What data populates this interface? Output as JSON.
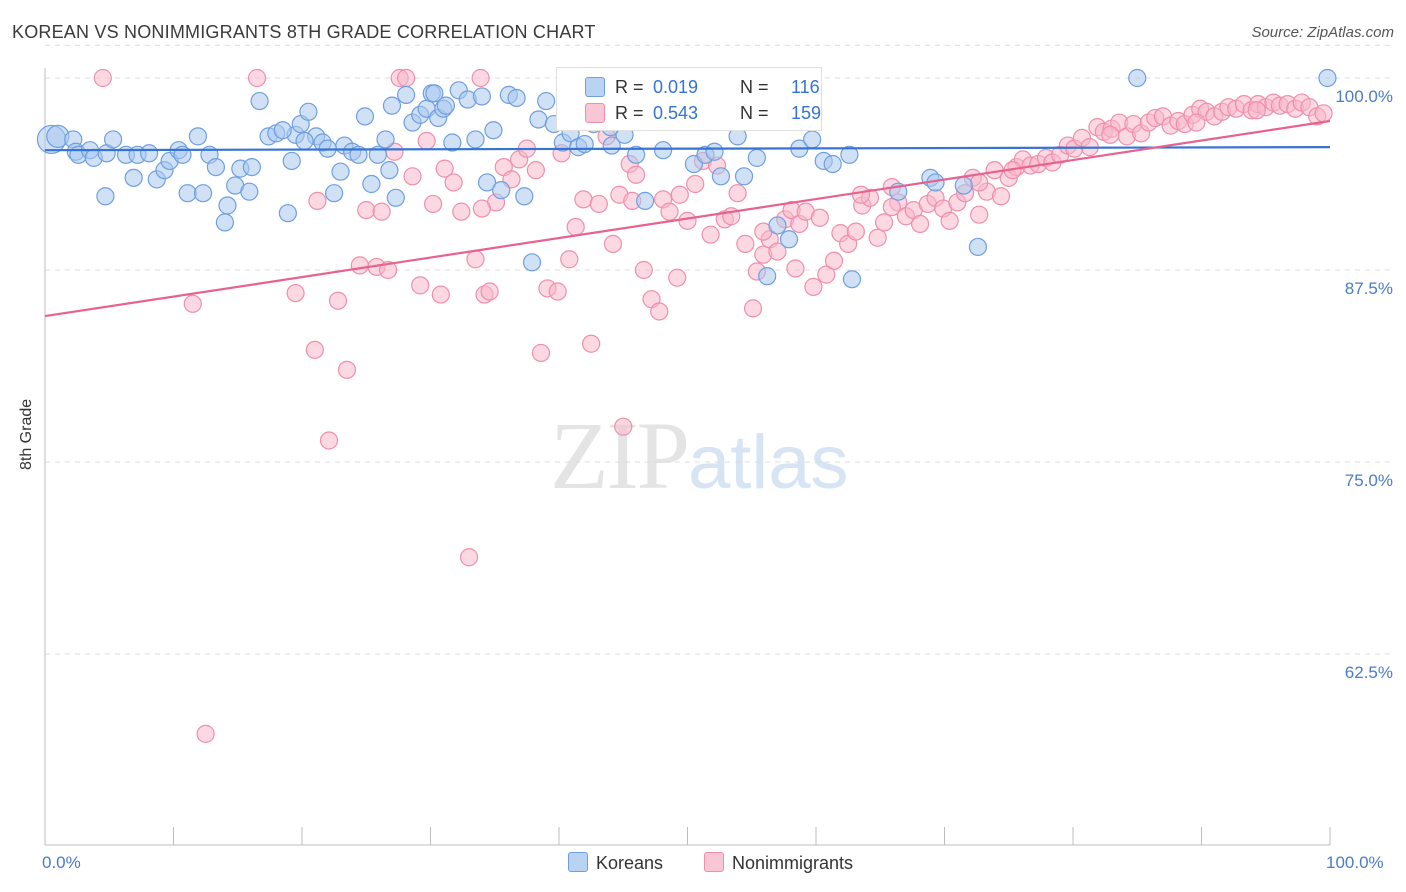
{
  "title": "KOREAN VS NONIMMIGRANTS 8TH GRADE CORRELATION CHART",
  "source": "Source: ZipAtlas.com",
  "watermark": {
    "zip": "ZIP",
    "atlas": "atlas"
  },
  "colors": {
    "korean_fill": "#a9c8ef",
    "korean_stroke": "#6f9fe0",
    "korean_line": "#3573d4",
    "nonimm_fill": "#f7b8ca",
    "nonimm_stroke": "#ef8fae",
    "nonimm_line": "#e8628f",
    "tick_label": "#4a7cc9",
    "grid": "#dcdcdc"
  },
  "legend_top": {
    "korean": {
      "r_label": "R =",
      "r_value": "0.019",
      "n_label": "N =",
      "n_value": "116"
    },
    "nonimm": {
      "r_label": "R =",
      "r_value": "0.543",
      "n_label": "N =",
      "n_value": "159"
    }
  },
  "legend_bottom": {
    "korean": "Koreans",
    "nonimm": "Nonimmigrants"
  },
  "chart_data": {
    "type": "scatter",
    "title": "KOREAN VS NONIMMIGRANTS 8TH GRADE CORRELATION CHART",
    "xlabel": "",
    "ylabel": "8th Grade",
    "xlim": [
      0,
      100
    ],
    "ylim": [
      50,
      102
    ],
    "x_tick_labels": [
      "0.0%",
      "100.0%"
    ],
    "y_ticks": [
      100,
      87.5,
      75,
      62.5
    ],
    "y_tick_labels": [
      "100.0%",
      "87.5%",
      "75.0%",
      "62.5%"
    ],
    "grid": "horizontal dashed",
    "legend_position": "top-center",
    "series": [
      {
        "name": "Koreans",
        "r": 0.019,
        "n": 116,
        "trend": {
          "x": [
            0,
            100
          ],
          "y": [
            95.3,
            95.5
          ]
        },
        "points": [
          [
            0.5,
            96.0
          ],
          [
            1.0,
            96.2
          ],
          [
            2.2,
            96.0
          ],
          [
            2.4,
            95.2
          ],
          [
            2.6,
            95.0
          ],
          [
            3.5,
            95.3
          ],
          [
            3.8,
            94.8
          ],
          [
            4.7,
            92.3
          ],
          [
            4.8,
            95.1
          ],
          [
            5.3,
            96.0
          ],
          [
            6.3,
            95.0
          ],
          [
            6.9,
            93.5
          ],
          [
            7.2,
            95.0
          ],
          [
            8.1,
            95.1
          ],
          [
            8.7,
            93.4
          ],
          [
            9.3,
            94.0
          ],
          [
            9.7,
            94.6
          ],
          [
            10.4,
            95.3
          ],
          [
            10.7,
            95.0
          ],
          [
            11.1,
            92.5
          ],
          [
            11.9,
            96.2
          ],
          [
            12.3,
            92.5
          ],
          [
            12.8,
            95.0
          ],
          [
            13.3,
            94.2
          ],
          [
            14.0,
            90.6
          ],
          [
            14.2,
            91.7
          ],
          [
            14.8,
            93.0
          ],
          [
            15.2,
            94.1
          ],
          [
            15.9,
            92.6
          ],
          [
            16.1,
            94.2
          ],
          [
            16.7,
            98.5
          ],
          [
            17.4,
            96.2
          ],
          [
            18.0,
            96.4
          ],
          [
            18.9,
            91.2
          ],
          [
            19.2,
            94.6
          ],
          [
            19.5,
            96.3
          ],
          [
            19.9,
            97.0
          ],
          [
            20.5,
            97.8
          ],
          [
            21.1,
            96.2
          ],
          [
            21.6,
            95.8
          ],
          [
            22.0,
            95.4
          ],
          [
            22.5,
            92.5
          ],
          [
            23.3,
            95.6
          ],
          [
            23.9,
            95.2
          ],
          [
            24.4,
            95.0
          ],
          [
            24.9,
            97.5
          ],
          [
            25.4,
            93.1
          ],
          [
            25.9,
            95.0
          ],
          [
            26.5,
            96.0
          ],
          [
            27.0,
            98.2
          ],
          [
            27.3,
            92.2
          ],
          [
            28.1,
            98.9
          ],
          [
            28.6,
            97.1
          ],
          [
            29.2,
            97.6
          ],
          [
            29.7,
            98.0
          ],
          [
            30.1,
            99.0
          ],
          [
            30.6,
            97.4
          ],
          [
            31.0,
            98.0
          ],
          [
            31.7,
            95.8
          ],
          [
            32.2,
            99.2
          ],
          [
            32.9,
            98.6
          ],
          [
            33.5,
            96.0
          ],
          [
            34.0,
            98.8
          ],
          [
            34.4,
            93.2
          ],
          [
            34.9,
            96.6
          ],
          [
            35.5,
            92.7
          ],
          [
            36.1,
            98.9
          ],
          [
            36.7,
            98.7
          ],
          [
            37.3,
            92.3
          ],
          [
            37.9,
            88.0
          ],
          [
            38.4,
            97.3
          ],
          [
            39.0,
            98.5
          ],
          [
            39.6,
            97.0
          ],
          [
            40.3,
            95.8
          ],
          [
            40.9,
            96.4
          ],
          [
            41.5,
            95.5
          ],
          [
            42.0,
            95.7
          ],
          [
            42.7,
            97.0
          ],
          [
            43.3,
            97.8
          ],
          [
            44.1,
            95.6
          ],
          [
            45.1,
            96.3
          ],
          [
            46.0,
            95.0
          ],
          [
            46.7,
            92.0
          ],
          [
            47.3,
            97.5
          ],
          [
            48.1,
            95.3
          ],
          [
            49.2,
            99.0
          ],
          [
            50.5,
            94.4
          ],
          [
            51.4,
            95.0
          ],
          [
            52.1,
            95.2
          ],
          [
            52.6,
            93.6
          ],
          [
            53.9,
            96.2
          ],
          [
            54.4,
            93.6
          ],
          [
            55.4,
            94.8
          ],
          [
            56.2,
            87.1
          ],
          [
            57.0,
            90.4
          ],
          [
            57.9,
            89.5
          ],
          [
            58.7,
            95.4
          ],
          [
            59.7,
            96.0
          ],
          [
            60.6,
            94.6
          ],
          [
            61.3,
            94.4
          ],
          [
            62.6,
            95.0
          ],
          [
            62.8,
            86.9
          ],
          [
            66.4,
            92.6
          ],
          [
            68.9,
            93.5
          ],
          [
            69.3,
            93.2
          ],
          [
            71.5,
            93.0
          ],
          [
            72.6,
            89.0
          ],
          [
            85.0,
            100.0
          ],
          [
            99.8,
            100.0
          ],
          [
            44.0,
            96.8
          ],
          [
            30.3,
            99.0
          ],
          [
            31.2,
            98.2
          ],
          [
            26.8,
            94.0
          ],
          [
            20.2,
            95.9
          ],
          [
            18.5,
            96.6
          ],
          [
            23.0,
            93.9
          ]
        ]
      },
      {
        "name": "Nonimmigrants",
        "r": 0.543,
        "n": 159,
        "trend": {
          "x": [
            0,
            100
          ],
          "y": [
            84.5,
            97.2
          ]
        },
        "points": [
          [
            4.5,
            100.0
          ],
          [
            11.5,
            85.3
          ],
          [
            12.5,
            57.3
          ],
          [
            16.5,
            100.0
          ],
          [
            19.5,
            86.0
          ],
          [
            21.0,
            82.3
          ],
          [
            21.2,
            92.0
          ],
          [
            22.1,
            76.4
          ],
          [
            22.8,
            85.5
          ],
          [
            23.5,
            81.0
          ],
          [
            24.5,
            87.8
          ],
          [
            25.0,
            91.4
          ],
          [
            25.8,
            87.7
          ],
          [
            26.2,
            91.3
          ],
          [
            26.7,
            87.5
          ],
          [
            27.2,
            95.2
          ],
          [
            27.6,
            100.0
          ],
          [
            28.1,
            100.0
          ],
          [
            28.6,
            93.6
          ],
          [
            29.2,
            86.5
          ],
          [
            29.7,
            95.9
          ],
          [
            30.2,
            91.8
          ],
          [
            30.8,
            85.9
          ],
          [
            31.1,
            94.1
          ],
          [
            31.8,
            93.2
          ],
          [
            32.4,
            91.3
          ],
          [
            33.0,
            68.8
          ],
          [
            33.5,
            88.2
          ],
          [
            33.9,
            100.0
          ],
          [
            34.2,
            85.9
          ],
          [
            34.6,
            86.1
          ],
          [
            35.1,
            91.9
          ],
          [
            35.7,
            94.2
          ],
          [
            36.3,
            93.4
          ],
          [
            36.9,
            94.7
          ],
          [
            37.5,
            95.4
          ],
          [
            38.2,
            94.0
          ],
          [
            38.6,
            82.1
          ],
          [
            39.1,
            86.3
          ],
          [
            39.9,
            86.1
          ],
          [
            40.2,
            95.1
          ],
          [
            40.8,
            88.2
          ],
          [
            41.3,
            90.3
          ],
          [
            41.9,
            92.1
          ],
          [
            42.5,
            82.7
          ],
          [
            43.1,
            91.8
          ],
          [
            43.7,
            96.2
          ],
          [
            44.2,
            89.2
          ],
          [
            44.7,
            92.4
          ],
          [
            45.0,
            77.3
          ],
          [
            45.5,
            94.4
          ],
          [
            46.0,
            93.7
          ],
          [
            46.6,
            87.5
          ],
          [
            47.2,
            85.6
          ],
          [
            47.8,
            84.8
          ],
          [
            48.1,
            92.1
          ],
          [
            48.6,
            91.3
          ],
          [
            49.4,
            92.4
          ],
          [
            50.0,
            90.7
          ],
          [
            50.6,
            93.1
          ],
          [
            51.2,
            94.6
          ],
          [
            51.8,
            89.8
          ],
          [
            52.3,
            94.3
          ],
          [
            52.9,
            90.8
          ],
          [
            53.4,
            91.0
          ],
          [
            53.9,
            92.5
          ],
          [
            54.5,
            89.2
          ],
          [
            55.1,
            85.0
          ],
          [
            55.4,
            87.4
          ],
          [
            55.9,
            88.5
          ],
          [
            56.4,
            89.5
          ],
          [
            57.0,
            88.7
          ],
          [
            57.6,
            90.8
          ],
          [
            58.1,
            91.4
          ],
          [
            58.7,
            90.5
          ],
          [
            59.2,
            91.3
          ],
          [
            59.8,
            86.4
          ],
          [
            60.3,
            90.9
          ],
          [
            60.8,
            87.2
          ],
          [
            61.4,
            88.1
          ],
          [
            61.9,
            89.9
          ],
          [
            62.5,
            89.2
          ],
          [
            63.1,
            90.0
          ],
          [
            63.6,
            91.7
          ],
          [
            64.2,
            92.2
          ],
          [
            64.8,
            89.6
          ],
          [
            65.3,
            90.6
          ],
          [
            65.9,
            92.9
          ],
          [
            66.4,
            91.9
          ],
          [
            67.0,
            91.0
          ],
          [
            67.6,
            91.4
          ],
          [
            68.1,
            90.5
          ],
          [
            68.7,
            91.8
          ],
          [
            69.3,
            92.2
          ],
          [
            69.9,
            91.5
          ],
          [
            70.4,
            90.7
          ],
          [
            71.0,
            91.9
          ],
          [
            71.6,
            92.5
          ],
          [
            72.2,
            93.5
          ],
          [
            72.7,
            91.1
          ],
          [
            73.3,
            92.6
          ],
          [
            73.9,
            94.0
          ],
          [
            74.4,
            92.3
          ],
          [
            75.0,
            93.5
          ],
          [
            75.6,
            94.2
          ],
          [
            76.1,
            94.7
          ],
          [
            76.7,
            94.3
          ],
          [
            77.3,
            94.4
          ],
          [
            77.9,
            94.8
          ],
          [
            78.4,
            94.5
          ],
          [
            79.0,
            95.0
          ],
          [
            79.6,
            95.6
          ],
          [
            80.1,
            95.4
          ],
          [
            80.7,
            96.1
          ],
          [
            81.3,
            95.5
          ],
          [
            81.9,
            96.8
          ],
          [
            82.4,
            96.5
          ],
          [
            83.0,
            96.7
          ],
          [
            83.6,
            97.1
          ],
          [
            84.2,
            96.2
          ],
          [
            84.7,
            97.0
          ],
          [
            85.3,
            96.4
          ],
          [
            85.9,
            97.1
          ],
          [
            86.4,
            97.4
          ],
          [
            87.0,
            97.5
          ],
          [
            87.6,
            96.9
          ],
          [
            88.2,
            97.2
          ],
          [
            88.7,
            97.0
          ],
          [
            89.3,
            97.6
          ],
          [
            89.9,
            98.0
          ],
          [
            90.4,
            97.8
          ],
          [
            91.0,
            97.5
          ],
          [
            91.6,
            97.8
          ],
          [
            92.1,
            98.1
          ],
          [
            92.7,
            98.0
          ],
          [
            93.3,
            98.3
          ],
          [
            93.9,
            97.9
          ],
          [
            94.4,
            98.3
          ],
          [
            95.0,
            98.1
          ],
          [
            95.6,
            98.4
          ],
          [
            96.1,
            98.2
          ],
          [
            96.7,
            98.3
          ],
          [
            97.3,
            98.0
          ],
          [
            97.8,
            98.4
          ],
          [
            98.4,
            98.1
          ],
          [
            99.0,
            97.5
          ],
          [
            99.5,
            97.7
          ],
          [
            45.7,
            92.0
          ],
          [
            34.0,
            91.5
          ],
          [
            55.9,
            90.0
          ],
          [
            63.5,
            92.4
          ],
          [
            58.4,
            87.6
          ],
          [
            49.2,
            87.0
          ],
          [
            75.3,
            94.0
          ],
          [
            82.9,
            96.3
          ],
          [
            89.6,
            97.1
          ],
          [
            94.3,
            97.9
          ],
          [
            72.7,
            93.2
          ],
          [
            65.9,
            91.6
          ]
        ]
      }
    ]
  }
}
